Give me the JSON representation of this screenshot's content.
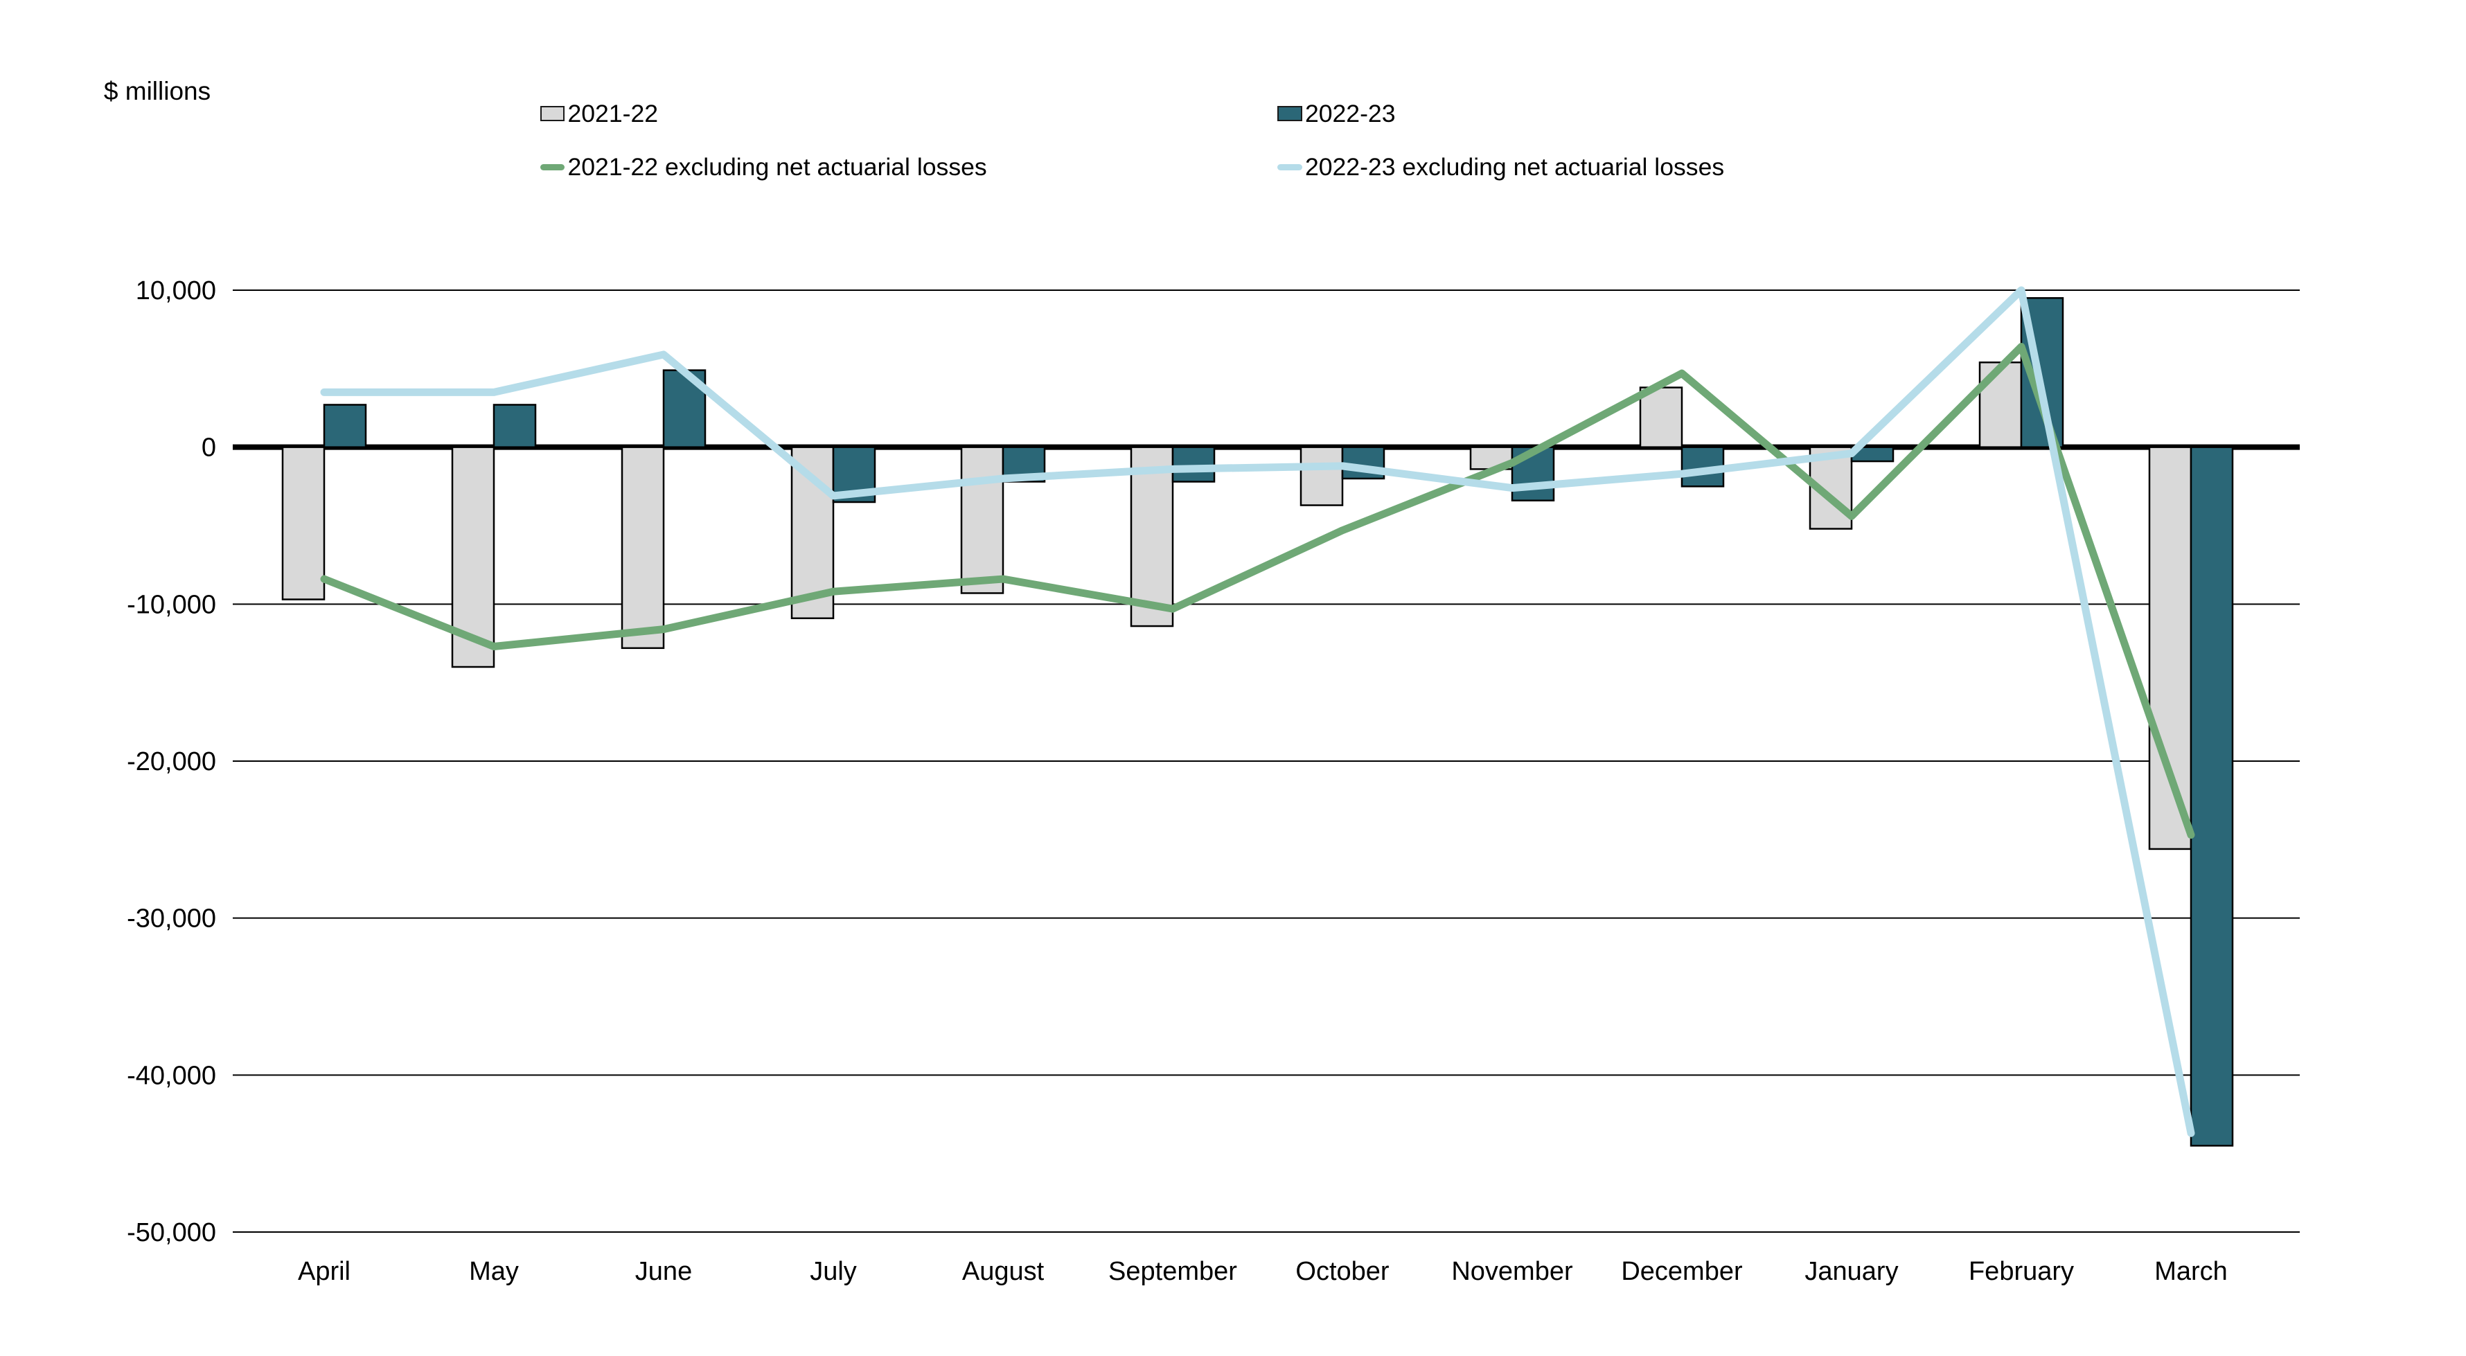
{
  "title": "$ millions",
  "legend": {
    "items": [
      {
        "label": "2021-22",
        "type": "bar-swatch",
        "color": "#d9d9d9"
      },
      {
        "label": "2022-23",
        "type": "bar-swatch",
        "color": "#2b6777"
      },
      {
        "label": "2021-22 excluding net actuarial losses",
        "type": "line-swatch",
        "color": "#6fa876"
      },
      {
        "label": "2022-23 excluding net actuarial losses",
        "type": "line-swatch",
        "color": "#b5dce9"
      }
    ]
  },
  "chart_data": {
    "type": "bar",
    "subtype": "grouped-bars-with-lines",
    "title": "$ millions",
    "categories": [
      "April",
      "May",
      "June",
      "July",
      "August",
      "September",
      "October",
      "November",
      "December",
      "January",
      "February",
      "March"
    ],
    "series": [
      {
        "name": "2021-22",
        "type": "bar",
        "color": "#d9d9d9",
        "values": [
          -9700,
          -14000,
          -12800,
          -10900,
          -9300,
          -11400,
          -3700,
          -1400,
          3800,
          -5200,
          5400,
          -25600
        ]
      },
      {
        "name": "2022-23",
        "type": "bar",
        "color": "#2b6777",
        "values": [
          2700,
          2700,
          4900,
          -3500,
          -2200,
          -2200,
          -2000,
          -3400,
          -2500,
          -900,
          9500,
          -44500
        ]
      },
      {
        "name": "2021-22 excluding net actuarial losses",
        "type": "line",
        "color": "#6fa876",
        "values": [
          -8400,
          -12700,
          -11600,
          -9200,
          -8400,
          -10300,
          -5300,
          -1000,
          4700,
          -4400,
          6400,
          -24700
        ]
      },
      {
        "name": "2022-23 excluding net actuarial losses",
        "type": "line",
        "color": "#b5dce9",
        "values": [
          3500,
          3500,
          5900,
          -3100,
          -2000,
          -1400,
          -1200,
          -2600,
          -1700,
          -400,
          10000,
          -43700
        ]
      }
    ],
    "xlabel": "",
    "ylabel": "$ millions",
    "ylim": [
      -50000,
      10000
    ],
    "yticks": [
      {
        "value": 10000,
        "label": "10,000"
      },
      {
        "value": 0,
        "label": "0"
      },
      {
        "value": -10000,
        "label": "-10,000"
      },
      {
        "value": -20000,
        "label": "-20,000"
      },
      {
        "value": -30000,
        "label": "-30,000"
      },
      {
        "value": -40000,
        "label": "-40,000"
      },
      {
        "value": -50000,
        "label": "-50,000"
      }
    ],
    "grid": true,
    "zero_line": true,
    "legend_position": "top"
  },
  "colors": {
    "background": "#ffffff",
    "grid": "#000000",
    "zero_line": "#000000",
    "bar_border": "#000000",
    "text": "#000000"
  }
}
